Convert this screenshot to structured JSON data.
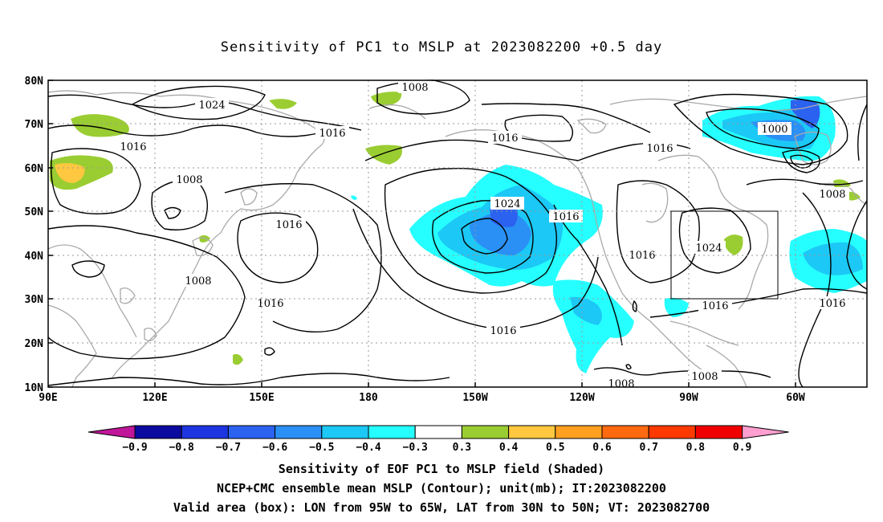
{
  "title": "Sensitivity of PC1 to MSLP at 2023082200 +0.5 day",
  "lat_labels": [
    "80N",
    "70N",
    "60N",
    "50N",
    "40N",
    "30N",
    "20N",
    "10N"
  ],
  "lon_labels": [
    "90E",
    "120E",
    "150E",
    "180",
    "150W",
    "120W",
    "90W",
    "60W"
  ],
  "contour_labels": {
    "c1008a": "1008",
    "c1024a": "1024",
    "c1016a": "1016",
    "c1016b": "1016",
    "c1016c": "1016",
    "c1016d": "1016",
    "c1000": "1000",
    "c1008b": "1008",
    "c1024b": "1024",
    "c1016e": "1016",
    "c1016f": "1016",
    "c1024c": "1024",
    "c1016g": "1016",
    "c1016h": "1016",
    "c1016i": "1016",
    "c1008c": "1008",
    "c1016j": "1016",
    "c1016k": "1016",
    "c1008d": "1008",
    "c1008e": "1008",
    "c1008f": "1008"
  },
  "colorbar": {
    "labels": [
      "-0.9",
      "-0.8",
      "-0.7",
      "-0.6",
      "-0.5",
      "-0.4",
      "-0.3",
      "0.3",
      "0.4",
      "0.5",
      "0.6",
      "0.7",
      "0.8",
      "0.9"
    ],
    "colors": [
      "#0b0ba0",
      "#1d35e0",
      "#2b62f0",
      "#2a90f5",
      "#1cc8f5",
      "#26ffff",
      "#ffffff",
      "#9acd32",
      "#ffc840",
      "#ffa020",
      "#ff6a10",
      "#ff3a00",
      "#f00000"
    ],
    "low_end_color": "#c0179a",
    "high_end_color": "#ff9fd0"
  },
  "captions": [
    "Sensitivity of EOF PC1 to MSLP field (Shaded)",
    "NCEP+CMC ensemble mean MSLP (Contour); unit(mb); IT:2023082200",
    "Valid area (box): LON from 95W to 65W, LAT from 30N to 50N; VT: 2023082700"
  ]
}
